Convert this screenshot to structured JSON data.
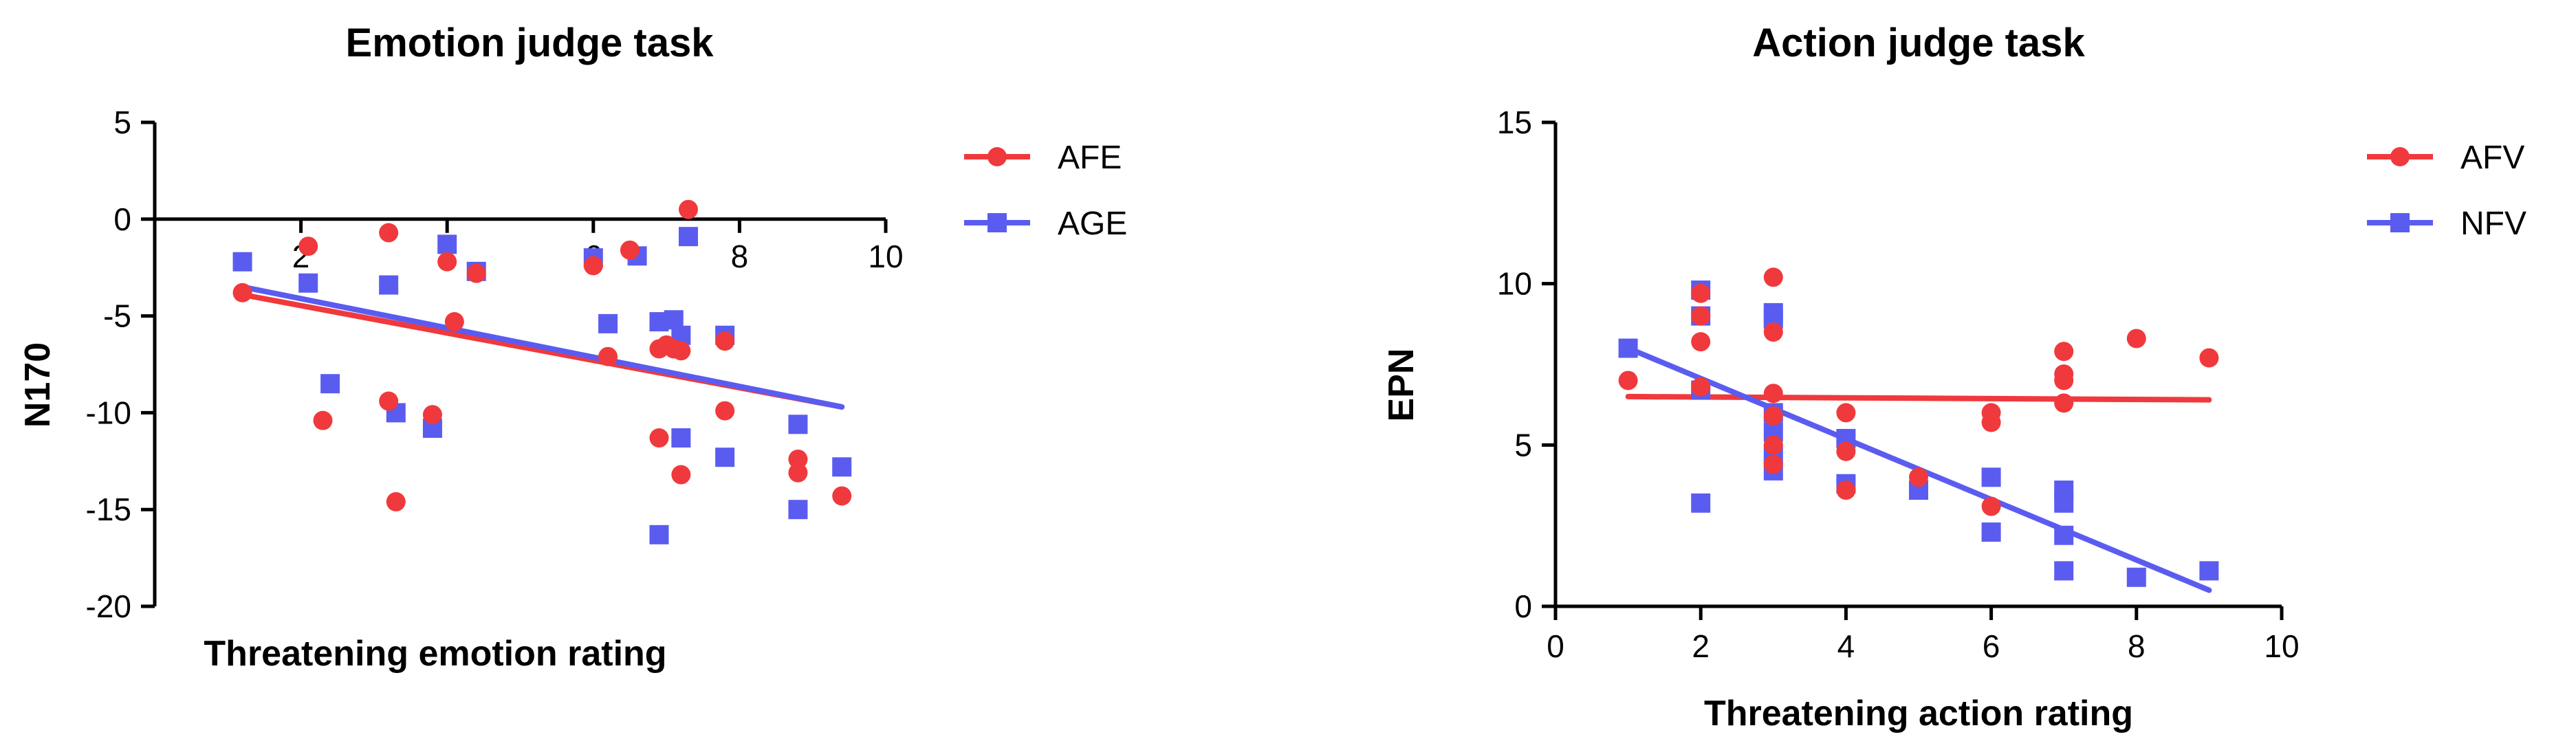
{
  "colors": {
    "red": "#f0393c",
    "blue": "#5a5cf0",
    "axis": "#000000"
  },
  "chart_data": [
    {
      "type": "scatter",
      "title": "Emotion judge task",
      "xlabel": "Threatening emotion rating",
      "ylabel": "N170",
      "xlim": [
        0,
        10
      ],
      "ylim": [
        -20,
        5
      ],
      "xticks": [
        {
          "v": 2,
          "label": "2"
        },
        {
          "v": 4,
          "label": "4"
        },
        {
          "v": 6,
          "label": "6"
        },
        {
          "v": 8,
          "label": "8"
        },
        {
          "v": 10,
          "label": "10"
        }
      ],
      "yticks": [
        {
          "v": 5,
          "label": "5"
        },
        {
          "v": 0,
          "label": "0"
        },
        {
          "v": -5,
          "label": "-5"
        },
        {
          "v": -10,
          "label": "-10"
        },
        {
          "v": -15,
          "label": "-15"
        },
        {
          "v": -20,
          "label": "-20"
        }
      ],
      "grid": false,
      "legend": "right",
      "series": [
        {
          "name": "AFE",
          "marker": "circle",
          "color": "#f0393c",
          "points": [
            [
              1.2,
              -3.8
            ],
            [
              2.1,
              -1.4
            ],
            [
              2.3,
              -10.4
            ],
            [
              3.2,
              -0.7
            ],
            [
              3.2,
              -9.4
            ],
            [
              3.3,
              -14.6
            ],
            [
              3.8,
              -10.1
            ],
            [
              4.0,
              -2.2
            ],
            [
              4.1,
              -5.3
            ],
            [
              4.4,
              -2.8
            ],
            [
              6.0,
              -2.4
            ],
            [
              6.2,
              -7.1
            ],
            [
              6.5,
              -1.6
            ],
            [
              6.9,
              -11.3
            ],
            [
              6.9,
              -6.7
            ],
            [
              7.0,
              -6.5
            ],
            [
              7.1,
              -6.7
            ],
            [
              7.2,
              -13.2
            ],
            [
              7.2,
              -6.8
            ],
            [
              7.3,
              0.5
            ],
            [
              7.8,
              -6.3
            ],
            [
              7.8,
              -9.9
            ],
            [
              8.8,
              -12.4
            ],
            [
              8.8,
              -13.1
            ],
            [
              9.4,
              -14.3
            ]
          ],
          "fit": [
            [
              1.2,
              -3.9
            ],
            [
              9.4,
              -9.7
            ]
          ]
        },
        {
          "name": "AGE",
          "marker": "square",
          "color": "#5a5cf0",
          "points": [
            [
              1.2,
              -2.2
            ],
            [
              2.1,
              -3.3
            ],
            [
              2.4,
              -8.5
            ],
            [
              3.2,
              -3.4
            ],
            [
              3.3,
              -10.0
            ],
            [
              3.8,
              -10.8
            ],
            [
              4.0,
              -1.3
            ],
            [
              4.4,
              -2.7
            ],
            [
              6.0,
              -2.0
            ],
            [
              6.2,
              -5.4
            ],
            [
              6.6,
              -1.9
            ],
            [
              6.9,
              -16.3
            ],
            [
              6.9,
              -5.3
            ],
            [
              7.1,
              -5.2
            ],
            [
              7.2,
              -11.3
            ],
            [
              7.2,
              -6.0
            ],
            [
              7.3,
              -0.9
            ],
            [
              7.8,
              -6.0
            ],
            [
              7.8,
              -12.3
            ],
            [
              8.8,
              -10.6
            ],
            [
              8.8,
              -15.0
            ],
            [
              9.4,
              -12.8
            ]
          ],
          "fit": [
            [
              1.2,
              -3.5
            ],
            [
              9.4,
              -9.7
            ]
          ]
        }
      ]
    },
    {
      "type": "scatter",
      "title": "Action judge task",
      "xlabel": "Threatening action rating",
      "ylabel": "EPN",
      "xlim": [
        0,
        10
      ],
      "ylim": [
        0,
        15
      ],
      "xticks": [
        {
          "v": 0,
          "label": "0"
        },
        {
          "v": 2,
          "label": "2"
        },
        {
          "v": 4,
          "label": "4"
        },
        {
          "v": 6,
          "label": "6"
        },
        {
          "v": 8,
          "label": "8"
        },
        {
          "v": 10,
          "label": "10"
        }
      ],
      "yticks": [
        {
          "v": 0,
          "label": "0"
        },
        {
          "v": 5,
          "label": "5"
        },
        {
          "v": 10,
          "label": "10"
        },
        {
          "v": 15,
          "label": "15"
        }
      ],
      "grid": false,
      "legend": "right",
      "series": [
        {
          "name": "AFV",
          "marker": "circle",
          "color": "#f0393c",
          "points": [
            [
              1,
              7.0
            ],
            [
              2,
              9.7
            ],
            [
              2,
              9.0
            ],
            [
              2,
              8.2
            ],
            [
              2,
              6.8
            ],
            [
              3,
              10.2
            ],
            [
              3,
              8.5
            ],
            [
              3,
              6.6
            ],
            [
              3,
              5.9
            ],
            [
              3,
              5.0
            ],
            [
              3,
              4.4
            ],
            [
              4,
              6.0
            ],
            [
              4,
              4.8
            ],
            [
              4,
              3.6
            ],
            [
              5,
              4.0
            ],
            [
              6,
              6.0
            ],
            [
              6,
              5.7
            ],
            [
              6,
              3.1
            ],
            [
              7,
              7.9
            ],
            [
              7,
              7.2
            ],
            [
              7,
              7.0
            ],
            [
              7,
              6.3
            ],
            [
              8,
              8.3
            ],
            [
              9,
              7.7
            ]
          ],
          "fit": [
            [
              1,
              6.5
            ],
            [
              9,
              6.4
            ]
          ]
        },
        {
          "name": "NFV",
          "marker": "square",
          "color": "#5a5cf0",
          "points": [
            [
              1,
              8.0
            ],
            [
              2,
              9.8
            ],
            [
              2,
              9.0
            ],
            [
              2,
              6.7
            ],
            [
              2,
              3.2
            ],
            [
              3,
              9.1
            ],
            [
              3,
              8.9
            ],
            [
              3,
              6.0
            ],
            [
              3,
              5.4
            ],
            [
              3,
              4.7
            ],
            [
              3,
              4.2
            ],
            [
              4,
              5.2
            ],
            [
              4,
              3.8
            ],
            [
              5,
              3.6
            ],
            [
              6,
              4.0
            ],
            [
              6,
              2.3
            ],
            [
              7,
              3.6
            ],
            [
              7,
              3.2
            ],
            [
              7,
              2.2
            ],
            [
              7,
              1.1
            ],
            [
              8,
              0.9
            ],
            [
              9,
              1.1
            ]
          ],
          "fit": [
            [
              1,
              8.0
            ],
            [
              9,
              0.5
            ]
          ]
        }
      ]
    }
  ]
}
